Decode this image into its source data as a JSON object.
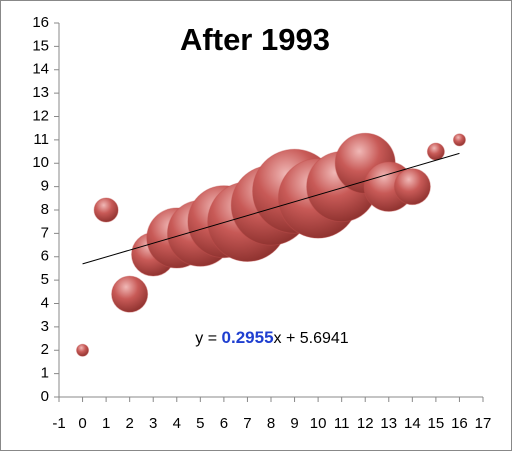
{
  "chart_data": {
    "type": "bubble",
    "title": "After 1993",
    "x": [
      0,
      1,
      2,
      3,
      4,
      5,
      6,
      7,
      8,
      9,
      10,
      11,
      12,
      13,
      14,
      15,
      16
    ],
    "series": [
      {
        "color": "#c0504d",
        "values": [
          2,
          8,
          4.4,
          6.1,
          6.8,
          7,
          7.5,
          7.5,
          8.2,
          8.8,
          8.5,
          9,
          10,
          9,
          9,
          10.5,
          11
        ],
        "sizes": [
          1,
          4,
          9,
          13,
          25,
          30,
          36,
          44,
          44,
          49,
          44,
          34,
          25,
          17,
          9,
          2,
          1
        ]
      }
    ],
    "trendline": {
      "slope": 0.2955,
      "intercept": 5.6941,
      "color": "#000000",
      "label": [
        "y = ",
        "0.2955",
        "x + 5.6941"
      ]
    },
    "xlim": [
      -1,
      17
    ],
    "xticks": [
      -1,
      0,
      1,
      2,
      3,
      4,
      5,
      6,
      7,
      8,
      9,
      10,
      11,
      12,
      13,
      14,
      15,
      16,
      17
    ],
    "ylim": [
      0,
      16
    ],
    "yticks": [
      0,
      1,
      2,
      3,
      4,
      5,
      6,
      7,
      8,
      9,
      10,
      11,
      12,
      13,
      14,
      15,
      16
    ],
    "grid": false
  }
}
